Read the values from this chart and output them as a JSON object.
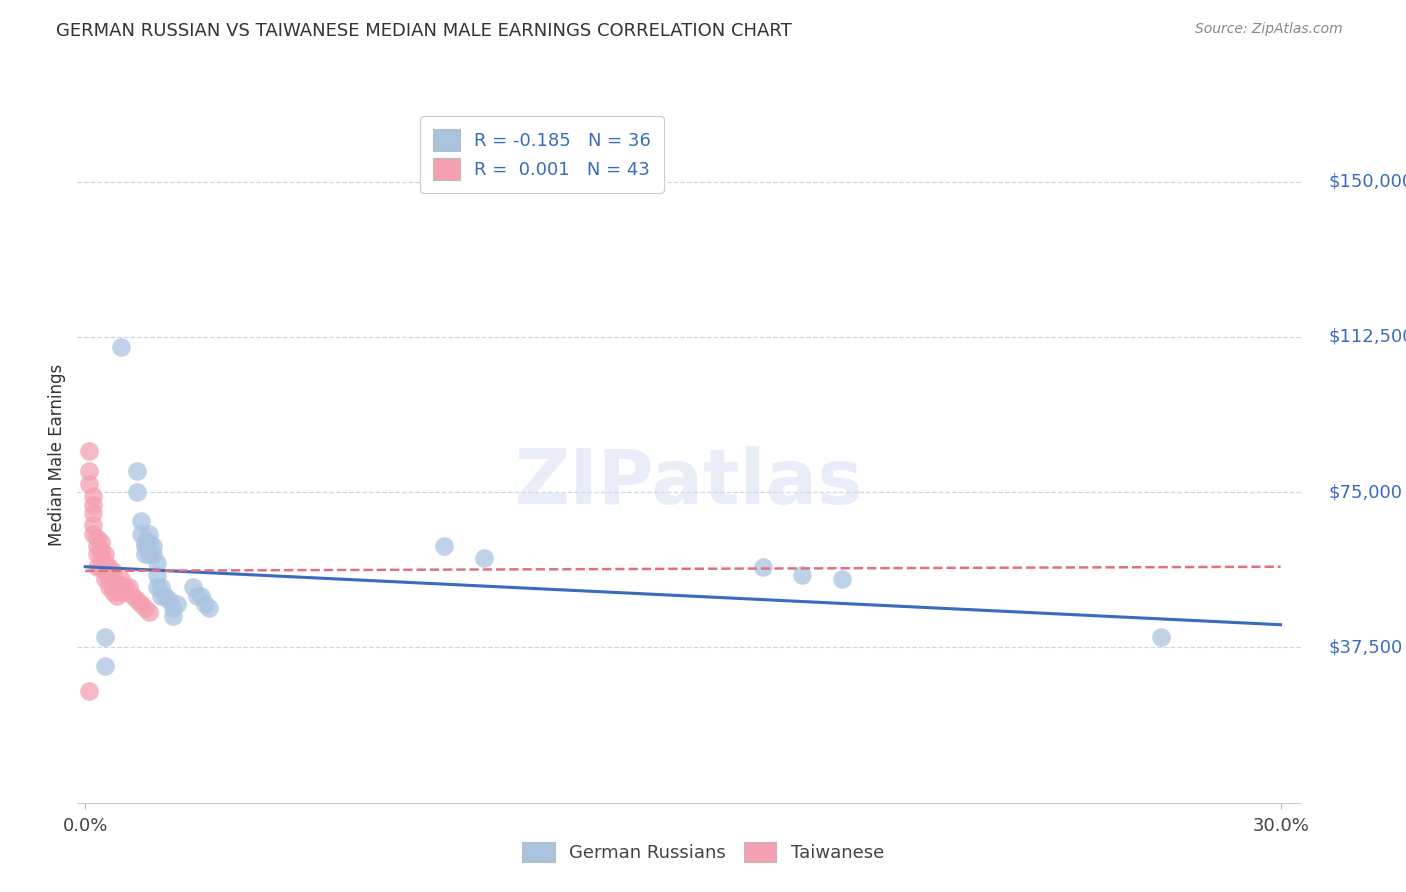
{
  "title": "GERMAN RUSSIAN VS TAIWANESE MEDIAN MALE EARNINGS CORRELATION CHART",
  "source": "Source: ZipAtlas.com",
  "ylabel": "Median Male Earnings",
  "watermark": "ZIPatlas",
  "legend_blue_r": "R = -0.185",
  "legend_blue_n": "N = 36",
  "legend_pink_r": "R =  0.001",
  "legend_pink_n": "N = 43",
  "yticks": [
    0,
    37500,
    75000,
    112500,
    150000
  ],
  "ytick_labels": [
    "",
    "$37,500",
    "$75,000",
    "$112,500",
    "$150,000"
  ],
  "xlim": [
    -0.002,
    0.305
  ],
  "ylim": [
    0,
    168000
  ],
  "blue_color": "#aac4e0",
  "pink_color": "#f4a0b0",
  "line_blue": "#3a6bbf",
  "line_pink": "#e07080",
  "grid_color": "#c8d8e8",
  "blue_scatter_x": [
    0.005,
    0.005,
    0.009,
    0.013,
    0.013,
    0.014,
    0.014,
    0.015,
    0.015,
    0.015,
    0.016,
    0.016,
    0.016,
    0.017,
    0.017,
    0.018,
    0.018,
    0.018,
    0.019,
    0.019,
    0.02,
    0.021,
    0.022,
    0.022,
    0.023,
    0.027,
    0.028,
    0.029,
    0.03,
    0.031,
    0.09,
    0.1,
    0.17,
    0.18,
    0.19,
    0.27
  ],
  "blue_scatter_y": [
    40000,
    33000,
    110000,
    80000,
    75000,
    68000,
    65000,
    63000,
    62000,
    60000,
    65000,
    63000,
    60000,
    62000,
    60000,
    58000,
    55000,
    52000,
    52000,
    50000,
    50000,
    49000,
    47000,
    45000,
    48000,
    52000,
    50000,
    50000,
    48000,
    47000,
    62000,
    59000,
    57000,
    55000,
    54000,
    40000
  ],
  "pink_scatter_x": [
    0.001,
    0.001,
    0.001,
    0.002,
    0.002,
    0.002,
    0.002,
    0.002,
    0.003,
    0.003,
    0.003,
    0.003,
    0.004,
    0.004,
    0.004,
    0.004,
    0.005,
    0.005,
    0.005,
    0.005,
    0.006,
    0.006,
    0.006,
    0.006,
    0.007,
    0.007,
    0.007,
    0.007,
    0.008,
    0.008,
    0.008,
    0.009,
    0.009,
    0.009,
    0.01,
    0.01,
    0.011,
    0.012,
    0.013,
    0.014,
    0.015,
    0.016,
    0.001
  ],
  "pink_scatter_y": [
    85000,
    80000,
    77000,
    74000,
    72000,
    70000,
    67000,
    65000,
    64000,
    62000,
    60000,
    57000,
    63000,
    61000,
    59000,
    57000,
    60000,
    58000,
    56000,
    54000,
    57000,
    56000,
    54000,
    52000,
    56000,
    54000,
    52000,
    51000,
    53000,
    51000,
    50000,
    54000,
    52000,
    51000,
    52000,
    51000,
    52000,
    50000,
    49000,
    48000,
    47000,
    46000,
    27000
  ],
  "blue_trend_x": [
    0.0,
    0.3
  ],
  "blue_trend_y": [
    57000,
    43000
  ],
  "pink_trend_x": [
    0.0,
    0.3
  ],
  "pink_trend_y": [
    56000,
    57000
  ],
  "xticks": [
    0.0,
    0.3
  ],
  "xtick_labels": [
    "0.0%",
    "30.0%"
  ],
  "bg_color": "#ffffff"
}
